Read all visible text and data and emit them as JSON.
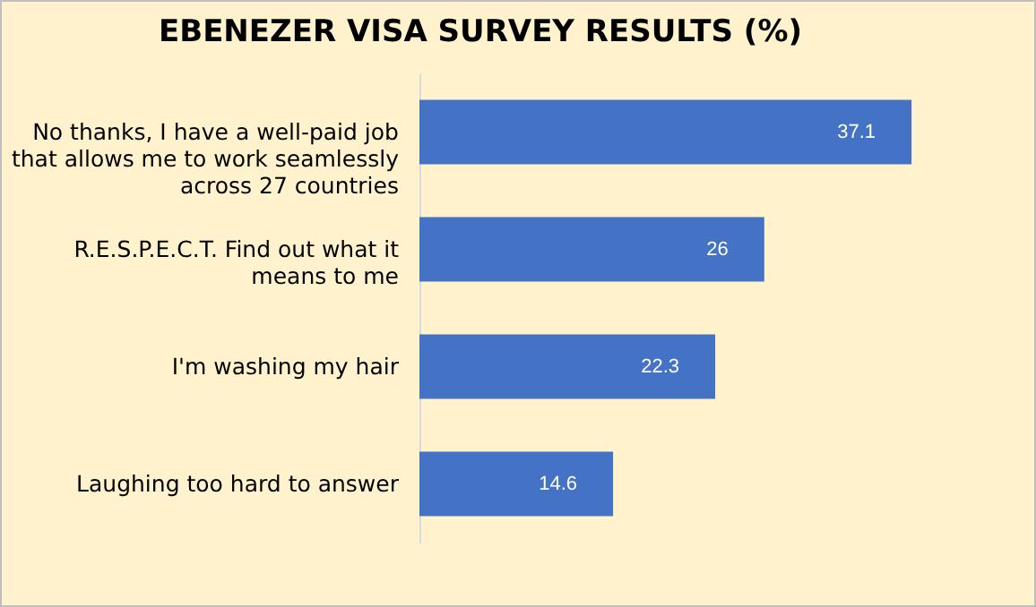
{
  "chart_data": {
    "type": "bar",
    "orientation": "horizontal",
    "title": "EBENEZER VISA SURVEY RESULTS (%)",
    "categories": [
      "No thanks, I have a well-paid job that allows me to work seamlessly across 27 countries",
      "R.E.S.P.E.C.T. Find out what it means to me",
      "I'm washing my hair",
      "Laughing too hard to answer"
    ],
    "values": [
      37.1,
      26,
      22.3,
      14.6
    ],
    "color": "#4472c4",
    "data_labels": true
  }
}
